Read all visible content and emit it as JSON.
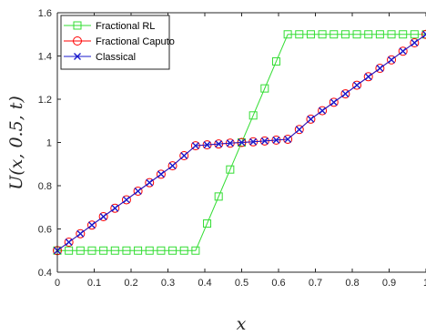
{
  "chart_data": {
    "type": "line",
    "xlabel": "x",
    "ylabel": "U(x, 0.5, t)",
    "xlim": [
      0,
      1
    ],
    "ylim": [
      0.4,
      1.6
    ],
    "x_ticks": [
      "0",
      "0.1",
      "0.2",
      "0.3",
      "0.4",
      "0.5",
      "0.6",
      "0.7",
      "0.8",
      "0.9",
      "1"
    ],
    "y_ticks": [
      "0.4",
      "0.6",
      "0.8",
      "1",
      "1.2",
      "1.4",
      "1.6"
    ],
    "grid": false,
    "legend_position": "top-left",
    "x": [
      0,
      0.03125,
      0.0625,
      0.09375,
      0.125,
      0.15625,
      0.1875,
      0.21875,
      0.25,
      0.28125,
      0.3125,
      0.34375,
      0.375,
      0.40625,
      0.4375,
      0.46875,
      0.5,
      0.53125,
      0.5625,
      0.59375,
      0.625,
      0.65625,
      0.6875,
      0.71875,
      0.75,
      0.78125,
      0.8125,
      0.84375,
      0.875,
      0.90625,
      0.9375,
      0.96875,
      1
    ],
    "series": [
      {
        "name": "Fractional RL",
        "color": "#33dd33",
        "marker": "square",
        "values": [
          0.5,
          0.5,
          0.5,
          0.5,
          0.5,
          0.5,
          0.5,
          0.5,
          0.5,
          0.5,
          0.5,
          0.5,
          0.5,
          0.625,
          0.75,
          0.875,
          1.0,
          1.125,
          1.25,
          1.375,
          1.5,
          1.5,
          1.5,
          1.5,
          1.5,
          1.5,
          1.5,
          1.5,
          1.5,
          1.5,
          1.5,
          1.5,
          1.5
        ]
      },
      {
        "name": "Fractional Caputo",
        "color": "#ff0000",
        "marker": "circle",
        "values": [
          0.5,
          0.539,
          0.578,
          0.618,
          0.657,
          0.696,
          0.735,
          0.775,
          0.814,
          0.853,
          0.892,
          0.939,
          0.985,
          0.989,
          0.993,
          0.997,
          1.0,
          1.003,
          1.007,
          1.011,
          1.015,
          1.06,
          1.108,
          1.147,
          1.186,
          1.225,
          1.265,
          1.304,
          1.343,
          1.382,
          1.422,
          1.461,
          1.5
        ]
      },
      {
        "name": "Classical",
        "color": "#1a1acc",
        "marker": "x",
        "values": [
          0.5,
          0.539,
          0.578,
          0.618,
          0.657,
          0.696,
          0.735,
          0.775,
          0.814,
          0.853,
          0.892,
          0.939,
          0.985,
          0.989,
          0.993,
          0.997,
          1.0,
          1.003,
          1.007,
          1.011,
          1.015,
          1.06,
          1.108,
          1.147,
          1.186,
          1.225,
          1.265,
          1.304,
          1.343,
          1.382,
          1.422,
          1.461,
          1.5
        ]
      }
    ]
  }
}
